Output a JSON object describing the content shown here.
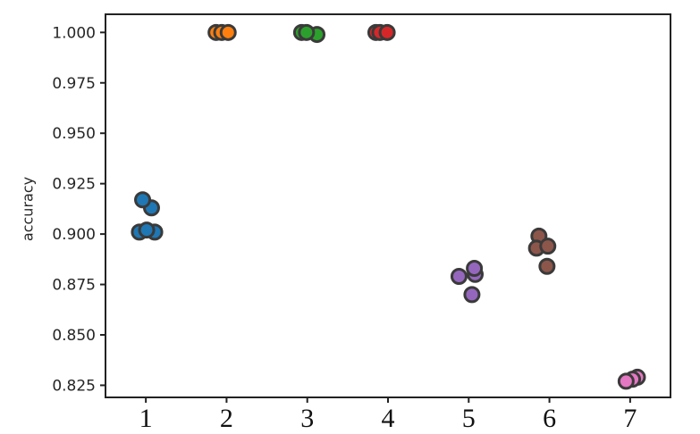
{
  "chart_data": {
    "type": "scatter",
    "title": "",
    "xlabel": "",
    "ylabel": "accuracy",
    "grid": false,
    "legend_position": "none",
    "xlim": [
      0.5,
      7.5
    ],
    "ylim": [
      0.819,
      1.009
    ],
    "x_tick_values": [
      1,
      2,
      3,
      4,
      5,
      6,
      7
    ],
    "x_tick_labels": [
      "1",
      "2",
      "3",
      "4",
      "5",
      "6",
      "7"
    ],
    "y_tick_values": [
      1.0,
      0.975,
      0.95,
      0.925,
      0.9,
      0.875,
      0.85,
      0.825
    ],
    "y_tick_labels": [
      "1.000",
      "0.975",
      "0.950",
      "0.925",
      "0.900",
      "0.875",
      "0.850",
      "0.825"
    ],
    "axis_color": "#222222",
    "marker_style": {
      "radius": 8,
      "edge_color": "#3a3a3a",
      "edge_width": 3
    },
    "series": [
      {
        "name": "1",
        "color": "#1f77b4",
        "points": [
          [
            1.07,
            0.913
          ],
          [
            0.96,
            0.917
          ],
          [
            0.92,
            0.901
          ],
          [
            1.11,
            0.901
          ],
          [
            1.01,
            0.902
          ]
        ]
      },
      {
        "name": "2",
        "color": "#ff7f0e",
        "points": [
          [
            1.87,
            1.0
          ],
          [
            1.94,
            1.0
          ],
          [
            2.02,
            1.0
          ]
        ]
      },
      {
        "name": "3",
        "color": "#2ca02c",
        "points": [
          [
            3.12,
            0.999
          ],
          [
            2.93,
            1.0
          ],
          [
            2.99,
            1.0
          ]
        ]
      },
      {
        "name": "4",
        "color": "#d62728",
        "points": [
          [
            3.85,
            1.0
          ],
          [
            3.9,
            1.0
          ],
          [
            3.99,
            1.0
          ]
        ]
      },
      {
        "name": "5",
        "color": "#9467bd",
        "points": [
          [
            5.08,
            0.88
          ],
          [
            5.07,
            0.883
          ],
          [
            4.88,
            0.879
          ],
          [
            5.04,
            0.87
          ]
        ]
      },
      {
        "name": "6",
        "color": "#8c564b",
        "points": [
          [
            5.87,
            0.899
          ],
          [
            5.84,
            0.893
          ],
          [
            5.98,
            0.894
          ],
          [
            5.97,
            0.884
          ]
        ]
      },
      {
        "name": "7",
        "color": "#e377c2",
        "points": [
          [
            7.09,
            0.829
          ],
          [
            7.03,
            0.828
          ],
          [
            6.95,
            0.827
          ]
        ]
      }
    ]
  }
}
